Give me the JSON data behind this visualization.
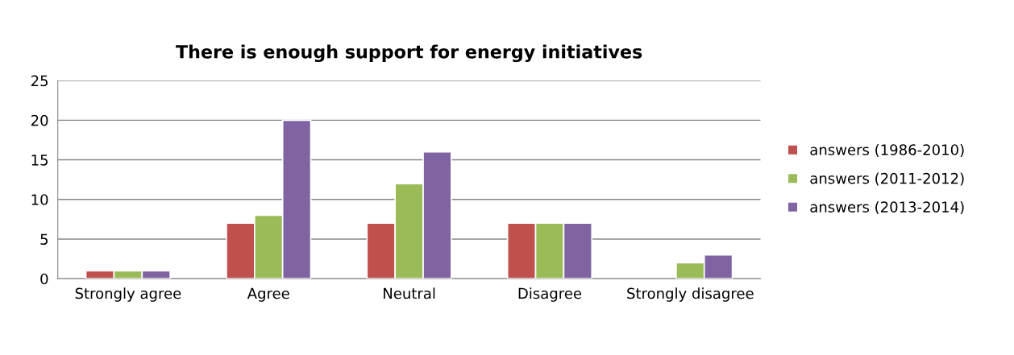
{
  "chart_data": {
    "type": "bar",
    "title": "There is enough support for energy initiatives",
    "categories": [
      "Strongly agree",
      "Agree",
      "Neutral",
      "Disagree",
      "Strongly disagree"
    ],
    "series": [
      {
        "name": "answers (1986-2010)",
        "color": "#c0504d",
        "values": [
          1,
          7,
          7,
          7,
          null
        ]
      },
      {
        "name": "answers (2011-2012)",
        "color": "#9bbb59",
        "values": [
          1,
          8,
          12,
          7,
          2
        ]
      },
      {
        "name": "answers (2013-2014)",
        "color": "#8064a2",
        "values": [
          1,
          20,
          16,
          7,
          3
        ]
      }
    ],
    "ylim": [
      0,
      25
    ],
    "yticks": [
      0,
      5,
      10,
      15,
      20,
      25
    ],
    "grid": "y",
    "legend": "right"
  }
}
